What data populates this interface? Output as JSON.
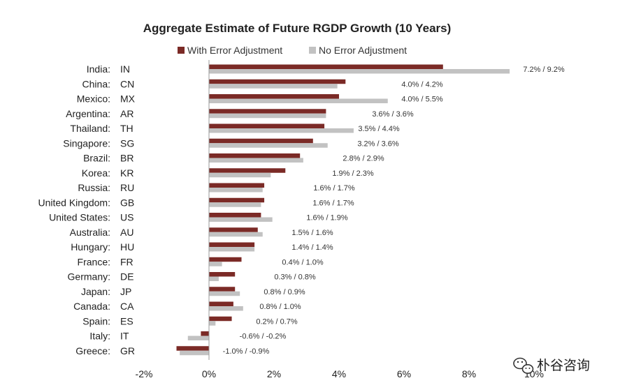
{
  "chart_data": {
    "type": "bar",
    "orientation": "horizontal",
    "title": "Aggregate Estimate of Future RGDP Growth (10 Years)",
    "xlim": [
      -2,
      10
    ],
    "xticks": [
      "-2%",
      "0%",
      "2%",
      "4%",
      "6%",
      "8%",
      "10%"
    ],
    "xtick_values": [
      -2,
      0,
      2,
      4,
      6,
      8,
      10
    ],
    "grid": false,
    "legend_position": "top",
    "categories": [
      {
        "country": "India:",
        "code": "IN"
      },
      {
        "country": "China:",
        "code": "CN"
      },
      {
        "country": "Mexico:",
        "code": "MX"
      },
      {
        "country": "Argentina:",
        "code": "AR"
      },
      {
        "country": "Thailand:",
        "code": "TH"
      },
      {
        "country": "Singapore:",
        "code": "SG"
      },
      {
        "country": "Brazil:",
        "code": "BR"
      },
      {
        "country": "Korea:",
        "code": "KR"
      },
      {
        "country": "Russia:",
        "code": "RU"
      },
      {
        "country": "United Kingdom:",
        "code": "GB"
      },
      {
        "country": "United States:",
        "code": "US"
      },
      {
        "country": "Australia:",
        "code": "AU"
      },
      {
        "country": "Hungary:",
        "code": "HU"
      },
      {
        "country": "France:",
        "code": "FR"
      },
      {
        "country": "Germany:",
        "code": "DE"
      },
      {
        "country": "Japan:",
        "code": "JP"
      },
      {
        "country": "Canada:",
        "code": "CA"
      },
      {
        "country": "Spain:",
        "code": "ES"
      },
      {
        "country": "Italy:",
        "code": "IT"
      },
      {
        "country": "Greece:",
        "code": "GR"
      }
    ],
    "series": [
      {
        "name": "With Error Adjustment",
        "color": "#7b2a26",
        "values": [
          7.2,
          4.2,
          4.0,
          3.6,
          3.55,
          3.2,
          2.8,
          2.35,
          1.7,
          1.7,
          1.6,
          1.5,
          1.4,
          1.0,
          0.8,
          0.8,
          0.75,
          0.7,
          -0.25,
          -1.0
        ]
      },
      {
        "name": "No Error Adjustment",
        "color": "#c2c2c2",
        "values": [
          9.25,
          3.95,
          5.5,
          3.6,
          4.45,
          3.65,
          2.9,
          1.9,
          1.65,
          1.6,
          1.95,
          1.65,
          1.4,
          0.4,
          0.3,
          0.95,
          1.05,
          0.2,
          -0.65,
          -0.9
        ]
      }
    ],
    "data_labels": [
      "7.2% / 9.2%",
      "4.0% / 4.2%",
      "4.0% / 5.5%",
      "3.6% / 3.6%",
      "3.5% / 4.4%",
      "3.2% / 3.6%",
      "2.8% / 2.9%",
      "1.9% / 2.3%",
      "1.6% / 1.7%",
      "1.6% / 1.7%",
      "1.6% / 1.9%",
      "1.5% / 1.6%",
      "1.4% / 1.4%",
      "0.4% / 1.0%",
      "0.3% / 0.8%",
      "0.8% / 0.9%",
      "0.8% / 1.0%",
      "0.2% / 0.7%",
      "-0.6% / -0.2%",
      "-1.0% / -0.9%"
    ]
  },
  "watermark": {
    "text": "朴谷咨询",
    "icon": "wechat-icon"
  }
}
